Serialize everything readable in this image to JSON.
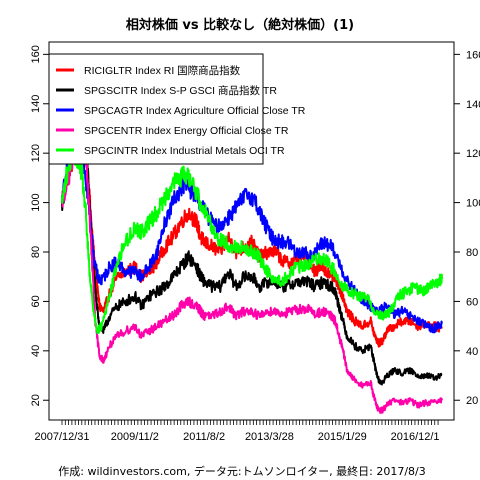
{
  "chart_data": {
    "type": "line",
    "title": "相対株価 vs 比較なし（絶対株価）(1)",
    "source_note": "作成: wildinvestors.com, データ元:トムソンロイター, 最終日: 2017/8/3",
    "ylim": [
      12,
      165
    ],
    "y_ticks": [
      20,
      40,
      60,
      80,
      100,
      120,
      140,
      160
    ],
    "x_ticks": [
      {
        "label": "2007/12/31",
        "t": 0.0
      },
      {
        "label": "2009/11/2",
        "t": 1.84
      },
      {
        "label": "2011/8/2",
        "t": 3.59
      },
      {
        "label": "2013/3/28",
        "t": 5.24
      },
      {
        "label": "2015/1/29",
        "t": 7.08
      },
      {
        "label": "2016/12/1",
        "t": 8.92
      }
    ],
    "x_range_years": [
      0,
      9.6
    ],
    "grid": false,
    "legend_position": "top-left",
    "series": [
      {
        "name": "RICIGLTR Index RI 国際商品指数",
        "color": "#ff0000",
        "points": [
          [
            0,
            100
          ],
          [
            0.1,
            108
          ],
          [
            0.25,
            116
          ],
          [
            0.4,
            124
          ],
          [
            0.5,
            134
          ],
          [
            0.55,
            129
          ],
          [
            0.65,
            112
          ],
          [
            0.75,
            90
          ],
          [
            0.85,
            70
          ],
          [
            0.95,
            58
          ],
          [
            1.05,
            56
          ],
          [
            1.2,
            63
          ],
          [
            1.4,
            70
          ],
          [
            1.6,
            72
          ],
          [
            1.85,
            74
          ],
          [
            2.0,
            70
          ],
          [
            2.2,
            72
          ],
          [
            2.4,
            76
          ],
          [
            2.6,
            82
          ],
          [
            2.8,
            86
          ],
          [
            3.0,
            92
          ],
          [
            3.2,
            96
          ],
          [
            3.4,
            92
          ],
          [
            3.5,
            86
          ],
          [
            3.6,
            84
          ],
          [
            3.8,
            82
          ],
          [
            4.0,
            80
          ],
          [
            4.2,
            86
          ],
          [
            4.4,
            80
          ],
          [
            4.6,
            82
          ],
          [
            4.8,
            84
          ],
          [
            5.0,
            78
          ],
          [
            5.2,
            80
          ],
          [
            5.4,
            80
          ],
          [
            5.6,
            76
          ],
          [
            5.8,
            76
          ],
          [
            6.0,
            78
          ],
          [
            6.2,
            78
          ],
          [
            6.4,
            72
          ],
          [
            6.5,
            74
          ],
          [
            6.6,
            74
          ],
          [
            6.8,
            70
          ],
          [
            6.9,
            70
          ],
          [
            7.0,
            66
          ],
          [
            7.1,
            62
          ],
          [
            7.2,
            56
          ],
          [
            7.4,
            52
          ],
          [
            7.6,
            50
          ],
          [
            7.8,
            52
          ],
          [
            7.9,
            46
          ],
          [
            8.0,
            43
          ],
          [
            8.1,
            44
          ],
          [
            8.2,
            48
          ],
          [
            8.4,
            50
          ],
          [
            8.6,
            52
          ],
          [
            8.8,
            52
          ],
          [
            9.0,
            50
          ],
          [
            9.2,
            51
          ],
          [
            9.4,
            50
          ],
          [
            9.6,
            49
          ]
        ]
      },
      {
        "name": "SPGSCITR Index S-P GSCI 商品指数 TR",
        "color": "#000000",
        "points": [
          [
            0,
            100
          ],
          [
            0.1,
            108
          ],
          [
            0.25,
            118
          ],
          [
            0.4,
            128
          ],
          [
            0.5,
            140
          ],
          [
            0.55,
            132
          ],
          [
            0.65,
            112
          ],
          [
            0.75,
            86
          ],
          [
            0.85,
            62
          ],
          [
            0.95,
            50
          ],
          [
            1.05,
            48
          ],
          [
            1.2,
            54
          ],
          [
            1.4,
            58
          ],
          [
            1.6,
            60
          ],
          [
            1.85,
            62
          ],
          [
            2.0,
            58
          ],
          [
            2.2,
            62
          ],
          [
            2.4,
            64
          ],
          [
            2.6,
            66
          ],
          [
            2.8,
            70
          ],
          [
            3.0,
            74
          ],
          [
            3.2,
            78
          ],
          [
            3.4,
            74
          ],
          [
            3.5,
            70
          ],
          [
            3.6,
            68
          ],
          [
            3.8,
            66
          ],
          [
            4.0,
            66
          ],
          [
            4.2,
            72
          ],
          [
            4.4,
            66
          ],
          [
            4.6,
            70
          ],
          [
            4.8,
            70
          ],
          [
            5.0,
            66
          ],
          [
            5.2,
            68
          ],
          [
            5.4,
            68
          ],
          [
            5.6,
            66
          ],
          [
            5.8,
            67
          ],
          [
            6.0,
            68
          ],
          [
            6.2,
            68
          ],
          [
            6.4,
            66
          ],
          [
            6.6,
            68
          ],
          [
            6.8,
            66
          ],
          [
            6.9,
            64
          ],
          [
            7.0,
            58
          ],
          [
            7.1,
            52
          ],
          [
            7.2,
            46
          ],
          [
            7.4,
            42
          ],
          [
            7.6,
            40
          ],
          [
            7.8,
            42
          ],
          [
            7.9,
            34
          ],
          [
            8.0,
            28
          ],
          [
            8.1,
            27
          ],
          [
            8.2,
            30
          ],
          [
            8.4,
            32
          ],
          [
            8.6,
            31
          ],
          [
            8.8,
            32
          ],
          [
            9.0,
            30
          ],
          [
            9.2,
            30
          ],
          [
            9.4,
            29
          ],
          [
            9.6,
            30
          ]
        ]
      },
      {
        "name": "SPGCAGTR Index Agriculture Official Close TR",
        "color": "#0000ff",
        "points": [
          [
            0,
            100
          ],
          [
            0.1,
            112
          ],
          [
            0.25,
            122
          ],
          [
            0.4,
            130
          ],
          [
            0.5,
            124
          ],
          [
            0.6,
            110
          ],
          [
            0.7,
            95
          ],
          [
            0.8,
            78
          ],
          [
            0.9,
            70
          ],
          [
            1.0,
            68
          ],
          [
            1.2,
            74
          ],
          [
            1.4,
            76
          ],
          [
            1.6,
            72
          ],
          [
            1.85,
            72
          ],
          [
            2.0,
            70
          ],
          [
            2.2,
            74
          ],
          [
            2.4,
            80
          ],
          [
            2.6,
            92
          ],
          [
            2.8,
            100
          ],
          [
            3.0,
            106
          ],
          [
            3.1,
            108
          ],
          [
            3.3,
            104
          ],
          [
            3.5,
            100
          ],
          [
            3.7,
            94
          ],
          [
            3.9,
            90
          ],
          [
            4.1,
            92
          ],
          [
            4.3,
            96
          ],
          [
            4.5,
            100
          ],
          [
            4.7,
            104
          ],
          [
            4.9,
            100
          ],
          [
            5.1,
            92
          ],
          [
            5.3,
            86
          ],
          [
            5.5,
            84
          ],
          [
            5.7,
            84
          ],
          [
            5.9,
            80
          ],
          [
            6.1,
            80
          ],
          [
            6.3,
            78
          ],
          [
            6.5,
            82
          ],
          [
            6.6,
            84
          ],
          [
            6.8,
            82
          ],
          [
            7.0,
            76
          ],
          [
            7.2,
            68
          ],
          [
            7.4,
            64
          ],
          [
            7.6,
            60
          ],
          [
            7.8,
            58
          ],
          [
            8.0,
            56
          ],
          [
            8.2,
            58
          ],
          [
            8.4,
            55
          ],
          [
            8.6,
            56
          ],
          [
            8.8,
            54
          ],
          [
            9.0,
            52
          ],
          [
            9.2,
            50
          ],
          [
            9.4,
            49
          ],
          [
            9.6,
            51
          ]
        ]
      },
      {
        "name": "SPGCENTR Index Energy Official Close TR",
        "color": "#ff00aa",
        "points": [
          [
            0,
            100
          ],
          [
            0.1,
            106
          ],
          [
            0.25,
            116
          ],
          [
            0.4,
            130
          ],
          [
            0.5,
            152
          ],
          [
            0.55,
            140
          ],
          [
            0.65,
            108
          ],
          [
            0.75,
            78
          ],
          [
            0.85,
            50
          ],
          [
            0.95,
            38
          ],
          [
            1.05,
            36
          ],
          [
            1.2,
            42
          ],
          [
            1.4,
            46
          ],
          [
            1.6,
            48
          ],
          [
            1.85,
            50
          ],
          [
            2.0,
            46
          ],
          [
            2.2,
            48
          ],
          [
            2.4,
            50
          ],
          [
            2.6,
            52
          ],
          [
            2.8,
            54
          ],
          [
            3.0,
            58
          ],
          [
            3.2,
            60
          ],
          [
            3.4,
            58
          ],
          [
            3.5,
            56
          ],
          [
            3.6,
            54
          ],
          [
            3.8,
            54
          ],
          [
            4.0,
            56
          ],
          [
            4.2,
            58
          ],
          [
            4.4,
            54
          ],
          [
            4.6,
            56
          ],
          [
            4.8,
            56
          ],
          [
            5.0,
            54
          ],
          [
            5.2,
            56
          ],
          [
            5.4,
            56
          ],
          [
            5.6,
            55
          ],
          [
            5.8,
            56
          ],
          [
            6.0,
            57
          ],
          [
            6.2,
            57
          ],
          [
            6.4,
            55
          ],
          [
            6.6,
            56
          ],
          [
            6.8,
            54
          ],
          [
            6.9,
            52
          ],
          [
            7.0,
            46
          ],
          [
            7.1,
            40
          ],
          [
            7.2,
            32
          ],
          [
            7.4,
            28
          ],
          [
            7.6,
            26
          ],
          [
            7.8,
            27
          ],
          [
            7.9,
            20
          ],
          [
            8.0,
            16
          ],
          [
            8.1,
            16
          ],
          [
            8.2,
            18
          ],
          [
            8.4,
            20
          ],
          [
            8.6,
            19
          ],
          [
            8.8,
            20
          ],
          [
            9.0,
            18
          ],
          [
            9.2,
            19
          ],
          [
            9.4,
            19
          ],
          [
            9.6,
            20
          ]
        ]
      },
      {
        "name": "SPGCINTR Index Industrial Metals OCI TR",
        "color": "#00ff00",
        "points": [
          [
            0,
            100
          ],
          [
            0.1,
            110
          ],
          [
            0.25,
            120
          ],
          [
            0.4,
            118
          ],
          [
            0.5,
            112
          ],
          [
            0.6,
            96
          ],
          [
            0.7,
            70
          ],
          [
            0.8,
            56
          ],
          [
            0.9,
            48
          ],
          [
            1.0,
            50
          ],
          [
            1.2,
            62
          ],
          [
            1.4,
            76
          ],
          [
            1.6,
            84
          ],
          [
            1.85,
            90
          ],
          [
            2.0,
            88
          ],
          [
            2.2,
            92
          ],
          [
            2.4,
            96
          ],
          [
            2.6,
            102
          ],
          [
            2.8,
            108
          ],
          [
            3.0,
            110
          ],
          [
            3.1,
            112
          ],
          [
            3.3,
            108
          ],
          [
            3.5,
            100
          ],
          [
            3.7,
            94
          ],
          [
            3.9,
            86
          ],
          [
            4.1,
            84
          ],
          [
            4.3,
            82
          ],
          [
            4.5,
            82
          ],
          [
            4.7,
            80
          ],
          [
            4.9,
            80
          ],
          [
            5.1,
            74
          ],
          [
            5.3,
            70
          ],
          [
            5.5,
            68
          ],
          [
            5.7,
            70
          ],
          [
            5.9,
            74
          ],
          [
            6.1,
            74
          ],
          [
            6.3,
            76
          ],
          [
            6.5,
            78
          ],
          [
            6.7,
            76
          ],
          [
            6.9,
            72
          ],
          [
            7.1,
            66
          ],
          [
            7.3,
            64
          ],
          [
            7.5,
            62
          ],
          [
            7.7,
            62
          ],
          [
            7.9,
            56
          ],
          [
            8.1,
            54
          ],
          [
            8.3,
            56
          ],
          [
            8.5,
            62
          ],
          [
            8.7,
            64
          ],
          [
            8.9,
            66
          ],
          [
            9.1,
            64
          ],
          [
            9.3,
            66
          ],
          [
            9.5,
            68
          ],
          [
            9.6,
            69
          ]
        ]
      }
    ]
  }
}
